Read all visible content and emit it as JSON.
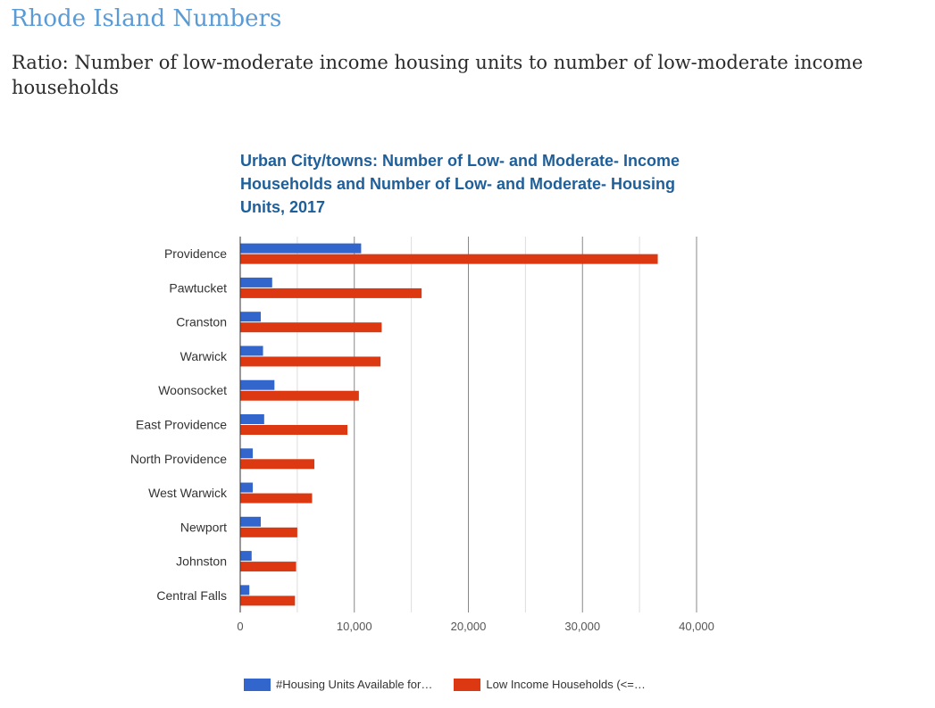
{
  "page": {
    "site_title": "Rhode Island Numbers",
    "subtitle": "Ratio: Number of low-moderate income housing units to number of low-moderate income households"
  },
  "chart_data": {
    "type": "bar",
    "orientation": "horizontal",
    "title": "Urban City/towns: Number of Low- and Moderate- Income Households and Number of Low- and Moderate- Housing Units, 2017",
    "xlabel": "",
    "ylabel": "",
    "xlim": [
      0,
      40000
    ],
    "x_ticks": [
      0,
      10000,
      20000,
      30000,
      40000
    ],
    "x_tick_labels": [
      "0",
      "10,000",
      "20,000",
      "30,000",
      "40,000"
    ],
    "grid": true,
    "legend_position": "bottom",
    "categories": [
      "Providence",
      "Pawtucket",
      "Cranston",
      "Warwick",
      "Woonsocket",
      "East Providence",
      "North Providence",
      "West Warwick",
      "Newport",
      "Johnston",
      "Central Falls"
    ],
    "series": [
      {
        "name": "#Housing Units Available for…",
        "color": "#3366cc",
        "values": [
          10600,
          2800,
          1800,
          2000,
          3000,
          2100,
          1100,
          1100,
          1800,
          1000,
          800
        ]
      },
      {
        "name": "Low Income Households (<=…",
        "color": "#dc3912",
        "values": [
          36600,
          15900,
          12400,
          12300,
          10400,
          9400,
          6500,
          6300,
          5000,
          4900,
          4800
        ]
      }
    ]
  }
}
